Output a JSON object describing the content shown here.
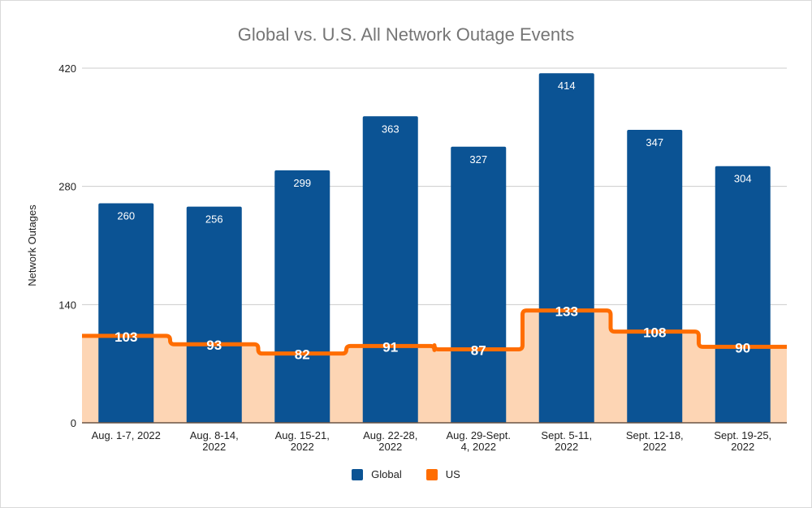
{
  "chart_data": {
    "type": "bar",
    "title": "Global vs. U.S. All Network Outage Events",
    "xlabel": "",
    "ylabel": "Network Outages",
    "ylim": [
      0,
      420
    ],
    "yticks": [
      "0",
      "140",
      "280",
      "420"
    ],
    "grid": true,
    "legend_position": "bottom",
    "categories": [
      [
        "Aug. 1-7, 2022"
      ],
      [
        "Aug. 8-14,",
        "2022"
      ],
      [
        "Aug. 15-21,",
        "2022"
      ],
      [
        "Aug. 22-28,",
        "2022"
      ],
      [
        "Aug. 29-Sept.",
        "4, 2022"
      ],
      [
        "Sept. 5-11,",
        "2022"
      ],
      [
        "Sept. 12-18,",
        "2022"
      ],
      [
        "Sept. 19-25,",
        "2022"
      ]
    ],
    "series": [
      {
        "name": "Global",
        "type": "bar",
        "color": "#0b5394",
        "values": [
          260,
          256,
          299,
          363,
          327,
          414,
          347,
          304
        ]
      },
      {
        "name": "US",
        "type": "stepped-area",
        "color": "#ff6d01",
        "fill": "#fdd5b4",
        "values": [
          103,
          93,
          82,
          91,
          87,
          133,
          108,
          90
        ]
      }
    ]
  }
}
